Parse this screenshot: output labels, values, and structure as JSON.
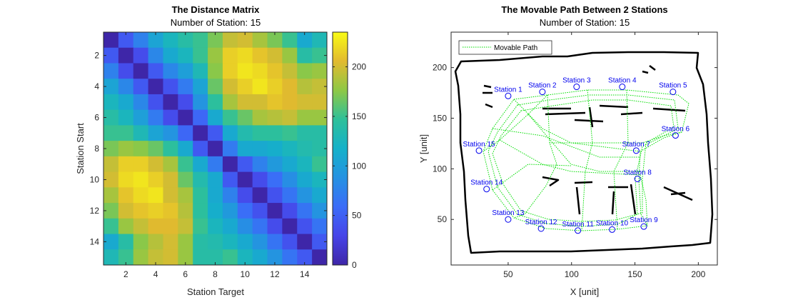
{
  "chart_data": [
    {
      "type": "heatmap",
      "title": "The Distance Matrix",
      "subtitle": "Number of Station: 15",
      "xlabel": "Station Target",
      "ylabel": "Station Start",
      "x_ticks": [
        2,
        4,
        6,
        8,
        10,
        12,
        14
      ],
      "y_ticks": [
        2,
        4,
        6,
        8,
        10,
        12,
        14
      ],
      "grid": false,
      "colormap": "parula",
      "colorbar": {
        "range": [
          0,
          235
        ],
        "ticks": [
          0,
          50,
          100,
          150,
          200
        ]
      },
      "matrix": [
        [
          0,
          45,
          75,
          105,
          125,
          140,
          150,
          170,
          195,
          200,
          185,
          170,
          150,
          110,
          130
        ],
        [
          45,
          0,
          35,
          80,
          110,
          125,
          150,
          180,
          215,
          220,
          210,
          200,
          180,
          140,
          150
        ],
        [
          75,
          35,
          0,
          45,
          80,
          100,
          130,
          175,
          215,
          225,
          220,
          210,
          195,
          175,
          180
        ],
        [
          105,
          80,
          45,
          0,
          40,
          70,
          105,
          165,
          200,
          215,
          225,
          215,
          205,
          190,
          195
        ],
        [
          125,
          110,
          80,
          40,
          0,
          35,
          90,
          145,
          185,
          200,
          200,
          210,
          205,
          200,
          200
        ],
        [
          140,
          125,
          100,
          70,
          35,
          0,
          55,
          110,
          150,
          165,
          185,
          190,
          195,
          180,
          180
        ],
        [
          150,
          150,
          130,
          105,
          90,
          55,
          0,
          45,
          110,
          135,
          145,
          145,
          150,
          140,
          140
        ],
        [
          170,
          180,
          175,
          165,
          145,
          110,
          45,
          0,
          70,
          110,
          110,
          115,
          125,
          135,
          140
        ],
        [
          195,
          215,
          215,
          200,
          185,
          150,
          110,
          70,
          0,
          45,
          75,
          95,
          110,
          125,
          150
        ],
        [
          200,
          220,
          225,
          215,
          200,
          165,
          135,
          110,
          45,
          0,
          35,
          60,
          85,
          110,
          125
        ],
        [
          185,
          210,
          220,
          225,
          200,
          185,
          145,
          110,
          75,
          35,
          0,
          40,
          65,
          90,
          110
        ],
        [
          170,
          200,
          210,
          215,
          210,
          190,
          145,
          115,
          95,
          60,
          40,
          0,
          35,
          65,
          90
        ],
        [
          150,
          180,
          195,
          205,
          205,
          195,
          150,
          125,
          110,
          85,
          65,
          35,
          0,
          40,
          65
        ],
        [
          110,
          140,
          175,
          190,
          200,
          180,
          140,
          135,
          125,
          110,
          90,
          65,
          40,
          0,
          45
        ],
        [
          130,
          150,
          180,
          195,
          200,
          180,
          140,
          140,
          150,
          125,
          110,
          90,
          65,
          45,
          0
        ]
      ]
    },
    {
      "type": "scatter",
      "title": "The Movable Path Between 2 Stations",
      "subtitle": "Number of Station: 15",
      "xlabel": "X [unit]",
      "ylabel": "Y [unit]",
      "xlim": [
        5,
        215
      ],
      "ylim": [
        5,
        235
      ],
      "x_ticks": [
        50,
        100,
        150,
        200
      ],
      "y_ticks": [
        50,
        100,
        150,
        200
      ],
      "grid": false,
      "legend": {
        "position": "top-left",
        "entries": [
          "Movable Path"
        ]
      },
      "path_color": "#00dd00",
      "station_color": "#0000ee",
      "stations": [
        {
          "label": "Station 1",
          "x": 50,
          "y": 172
        },
        {
          "label": "Station 2",
          "x": 77,
          "y": 176
        },
        {
          "label": "Station 3",
          "x": 104,
          "y": 181
        },
        {
          "label": "Station 4",
          "x": 140,
          "y": 181
        },
        {
          "label": "Station 5",
          "x": 180,
          "y": 176
        },
        {
          "label": "Station 6",
          "x": 182,
          "y": 133
        },
        {
          "label": "Station 7",
          "x": 151,
          "y": 118
        },
        {
          "label": "Station 8",
          "x": 152,
          "y": 90
        },
        {
          "label": "Station 9",
          "x": 157,
          "y": 43
        },
        {
          "label": "Station 10",
          "x": 132,
          "y": 40
        },
        {
          "label": "Station 11",
          "x": 105,
          "y": 39
        },
        {
          "label": "Station 12",
          "x": 76,
          "y": 41
        },
        {
          "label": "Station 13",
          "x": 50,
          "y": 50
        },
        {
          "label": "Station 14",
          "x": 33,
          "y": 80
        },
        {
          "label": "Station 15",
          "x": 27,
          "y": 118
        }
      ]
    }
  ]
}
